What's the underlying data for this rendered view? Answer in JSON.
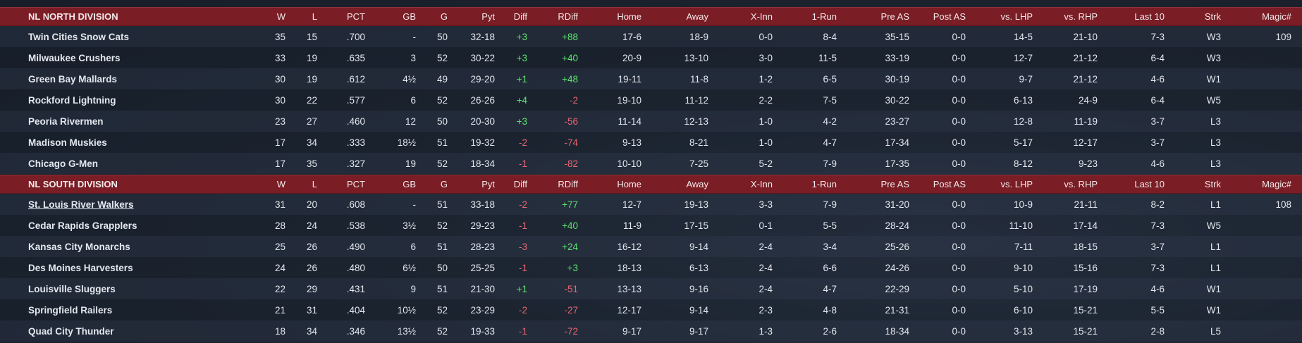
{
  "columns": [
    "W",
    "L",
    "PCT",
    "GB",
    "G",
    "Pyt",
    "Diff",
    "RDiff",
    "Home",
    "Away",
    "X-Inn",
    "1-Run",
    "Pre AS",
    "Post AS",
    "vs. LHP",
    "vs. RHP",
    "Last 10",
    "Strk",
    "Magic#"
  ],
  "colors": {
    "header_bg": "#7a1d25",
    "positive": "#5ee36f",
    "negative": "#ea6670"
  },
  "divisions": [
    {
      "title": "NL NORTH DIVISION",
      "teams": [
        {
          "name": "Twin Cities Snow Cats",
          "w": "35",
          "l": "15",
          "pct": ".700",
          "gb": "-",
          "g": "50",
          "pyt": "32-18",
          "diff": "+3",
          "rdiff": "+88",
          "home": "17-6",
          "away": "18-9",
          "xinn": "0-0",
          "onerun": "8-4",
          "preas": "35-15",
          "postas": "0-0",
          "lhp": "14-5",
          "rhp": "21-10",
          "last10": "7-3",
          "strk": "W3",
          "magic": "109"
        },
        {
          "name": "Milwaukee Crushers",
          "w": "33",
          "l": "19",
          "pct": ".635",
          "gb": "3",
          "g": "52",
          "pyt": "30-22",
          "diff": "+3",
          "rdiff": "+40",
          "home": "20-9",
          "away": "13-10",
          "xinn": "3-0",
          "onerun": "11-5",
          "preas": "33-19",
          "postas": "0-0",
          "lhp": "12-7",
          "rhp": "21-12",
          "last10": "6-4",
          "strk": "W3",
          "magic": ""
        },
        {
          "name": "Green Bay  Mallards",
          "w": "30",
          "l": "19",
          "pct": ".612",
          "gb": "4½",
          "g": "49",
          "pyt": "29-20",
          "diff": "+1",
          "rdiff": "+48",
          "home": "19-11",
          "away": "11-8",
          "xinn": "1-2",
          "onerun": "6-5",
          "preas": "30-19",
          "postas": "0-0",
          "lhp": "9-7",
          "rhp": "21-12",
          "last10": "4-6",
          "strk": "W1",
          "magic": ""
        },
        {
          "name": "Rockford Lightning",
          "w": "30",
          "l": "22",
          "pct": ".577",
          "gb": "6",
          "g": "52",
          "pyt": "26-26",
          "diff": "+4",
          "rdiff": "-2",
          "home": "19-10",
          "away": "11-12",
          "xinn": "2-2",
          "onerun": "7-5",
          "preas": "30-22",
          "postas": "0-0",
          "lhp": "6-13",
          "rhp": "24-9",
          "last10": "6-4",
          "strk": "W5",
          "magic": ""
        },
        {
          "name": "Peoria Rivermen",
          "w": "23",
          "l": "27",
          "pct": ".460",
          "gb": "12",
          "g": "50",
          "pyt": "20-30",
          "diff": "+3",
          "rdiff": "-56",
          "home": "11-14",
          "away": "12-13",
          "xinn": "1-0",
          "onerun": "4-2",
          "preas": "23-27",
          "postas": "0-0",
          "lhp": "12-8",
          "rhp": "11-19",
          "last10": "3-7",
          "strk": "L3",
          "magic": ""
        },
        {
          "name": "Madison Muskies",
          "w": "17",
          "l": "34",
          "pct": ".333",
          "gb": "18½",
          "g": "51",
          "pyt": "19-32",
          "diff": "-2",
          "rdiff": "-74",
          "home": "9-13",
          "away": "8-21",
          "xinn": "1-0",
          "onerun": "4-7",
          "preas": "17-34",
          "postas": "0-0",
          "lhp": "5-17",
          "rhp": "12-17",
          "last10": "3-7",
          "strk": "L3",
          "magic": ""
        },
        {
          "name": "Chicago G-Men",
          "w": "17",
          "l": "35",
          "pct": ".327",
          "gb": "19",
          "g": "52",
          "pyt": "18-34",
          "diff": "-1",
          "rdiff": "-82",
          "home": "10-10",
          "away": "7-25",
          "xinn": "5-2",
          "onerun": "7-9",
          "preas": "17-35",
          "postas": "0-0",
          "lhp": "8-12",
          "rhp": "9-23",
          "last10": "4-6",
          "strk": "L3",
          "magic": ""
        }
      ]
    },
    {
      "title": "NL SOUTH DIVISION",
      "teams": [
        {
          "name": "St. Louis River Walkers",
          "link": true,
          "w": "31",
          "l": "20",
          "pct": ".608",
          "gb": "-",
          "g": "51",
          "pyt": "33-18",
          "diff": "-2",
          "rdiff": "+77",
          "home": "12-7",
          "away": "19-13",
          "xinn": "3-3",
          "onerun": "7-9",
          "preas": "31-20",
          "postas": "0-0",
          "lhp": "10-9",
          "rhp": "21-11",
          "last10": "8-2",
          "strk": "L1",
          "magic": "108"
        },
        {
          "name": "Cedar Rapids Grapplers",
          "w": "28",
          "l": "24",
          "pct": ".538",
          "gb": "3½",
          "g": "52",
          "pyt": "29-23",
          "diff": "-1",
          "rdiff": "+40",
          "home": "11-9",
          "away": "17-15",
          "xinn": "0-1",
          "onerun": "5-5",
          "preas": "28-24",
          "postas": "0-0",
          "lhp": "11-10",
          "rhp": "17-14",
          "last10": "7-3",
          "strk": "W5",
          "magic": ""
        },
        {
          "name": "Kansas City Monarchs",
          "w": "25",
          "l": "26",
          "pct": ".490",
          "gb": "6",
          "g": "51",
          "pyt": "28-23",
          "diff": "-3",
          "rdiff": "+24",
          "home": "16-12",
          "away": "9-14",
          "xinn": "2-4",
          "onerun": "3-4",
          "preas": "25-26",
          "postas": "0-0",
          "lhp": "7-11",
          "rhp": "18-15",
          "last10": "3-7",
          "strk": "L1",
          "magic": ""
        },
        {
          "name": "Des Moines Harvesters",
          "w": "24",
          "l": "26",
          "pct": ".480",
          "gb": "6½",
          "g": "50",
          "pyt": "25-25",
          "diff": "-1",
          "rdiff": "+3",
          "home": "18-13",
          "away": "6-13",
          "xinn": "2-4",
          "onerun": "6-6",
          "preas": "24-26",
          "postas": "0-0",
          "lhp": "9-10",
          "rhp": "15-16",
          "last10": "7-3",
          "strk": "L1",
          "magic": ""
        },
        {
          "name": "Louisville Sluggers",
          "w": "22",
          "l": "29",
          "pct": ".431",
          "gb": "9",
          "g": "51",
          "pyt": "21-30",
          "diff": "+1",
          "rdiff": "-51",
          "home": "13-13",
          "away": "9-16",
          "xinn": "2-4",
          "onerun": "4-7",
          "preas": "22-29",
          "postas": "0-0",
          "lhp": "5-10",
          "rhp": "17-19",
          "last10": "4-6",
          "strk": "W1",
          "magic": ""
        },
        {
          "name": "Springfield Railers",
          "w": "21",
          "l": "31",
          "pct": ".404",
          "gb": "10½",
          "g": "52",
          "pyt": "23-29",
          "diff": "-2",
          "rdiff": "-27",
          "home": "12-17",
          "away": "9-14",
          "xinn": "2-3",
          "onerun": "4-8",
          "preas": "21-31",
          "postas": "0-0",
          "lhp": "6-10",
          "rhp": "15-21",
          "last10": "5-5",
          "strk": "W1",
          "magic": ""
        },
        {
          "name": "Quad City Thunder",
          "w": "18",
          "l": "34",
          "pct": ".346",
          "gb": "13½",
          "g": "52",
          "pyt": "19-33",
          "diff": "-1",
          "rdiff": "-72",
          "home": "9-17",
          "away": "9-17",
          "xinn": "1-3",
          "onerun": "2-6",
          "preas": "18-34",
          "postas": "0-0",
          "lhp": "3-13",
          "rhp": "15-21",
          "last10": "2-8",
          "strk": "L5",
          "magic": ""
        }
      ]
    }
  ]
}
